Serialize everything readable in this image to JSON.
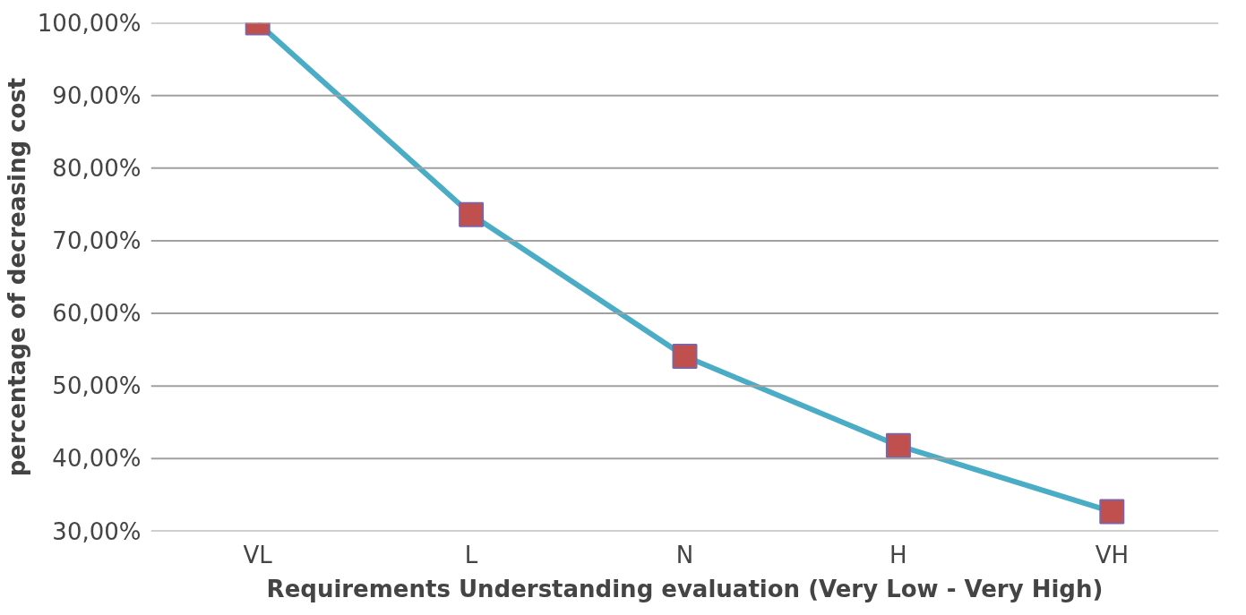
{
  "chart_data": {
    "type": "line",
    "xlabel": "Requirements Understanding evaluation (Very Low - Very High)",
    "ylabel": "percentage of decreasing cost",
    "categories": [
      "VL",
      "L",
      "N",
      "H",
      "VH"
    ],
    "series": [
      {
        "color": "#4bacc6",
        "values": [
          100,
          73.6,
          54.1,
          41.8,
          32.7
        ]
      }
    ],
    "ylim": [
      30,
      100
    ],
    "yticks": [
      {
        "value": 30,
        "label": "30,00%"
      },
      {
        "value": 40,
        "label": "40,00%"
      },
      {
        "value": 50,
        "label": "50,00%"
      },
      {
        "value": 60,
        "label": "60,00%"
      },
      {
        "value": 70,
        "label": "70,00%"
      },
      {
        "value": 80,
        "label": "80,00%"
      },
      {
        "value": 90,
        "label": "90,00%"
      },
      {
        "value": 100,
        "label": "100,00%"
      }
    ],
    "grid": "y",
    "marker": "square",
    "line_style": "solid"
  }
}
